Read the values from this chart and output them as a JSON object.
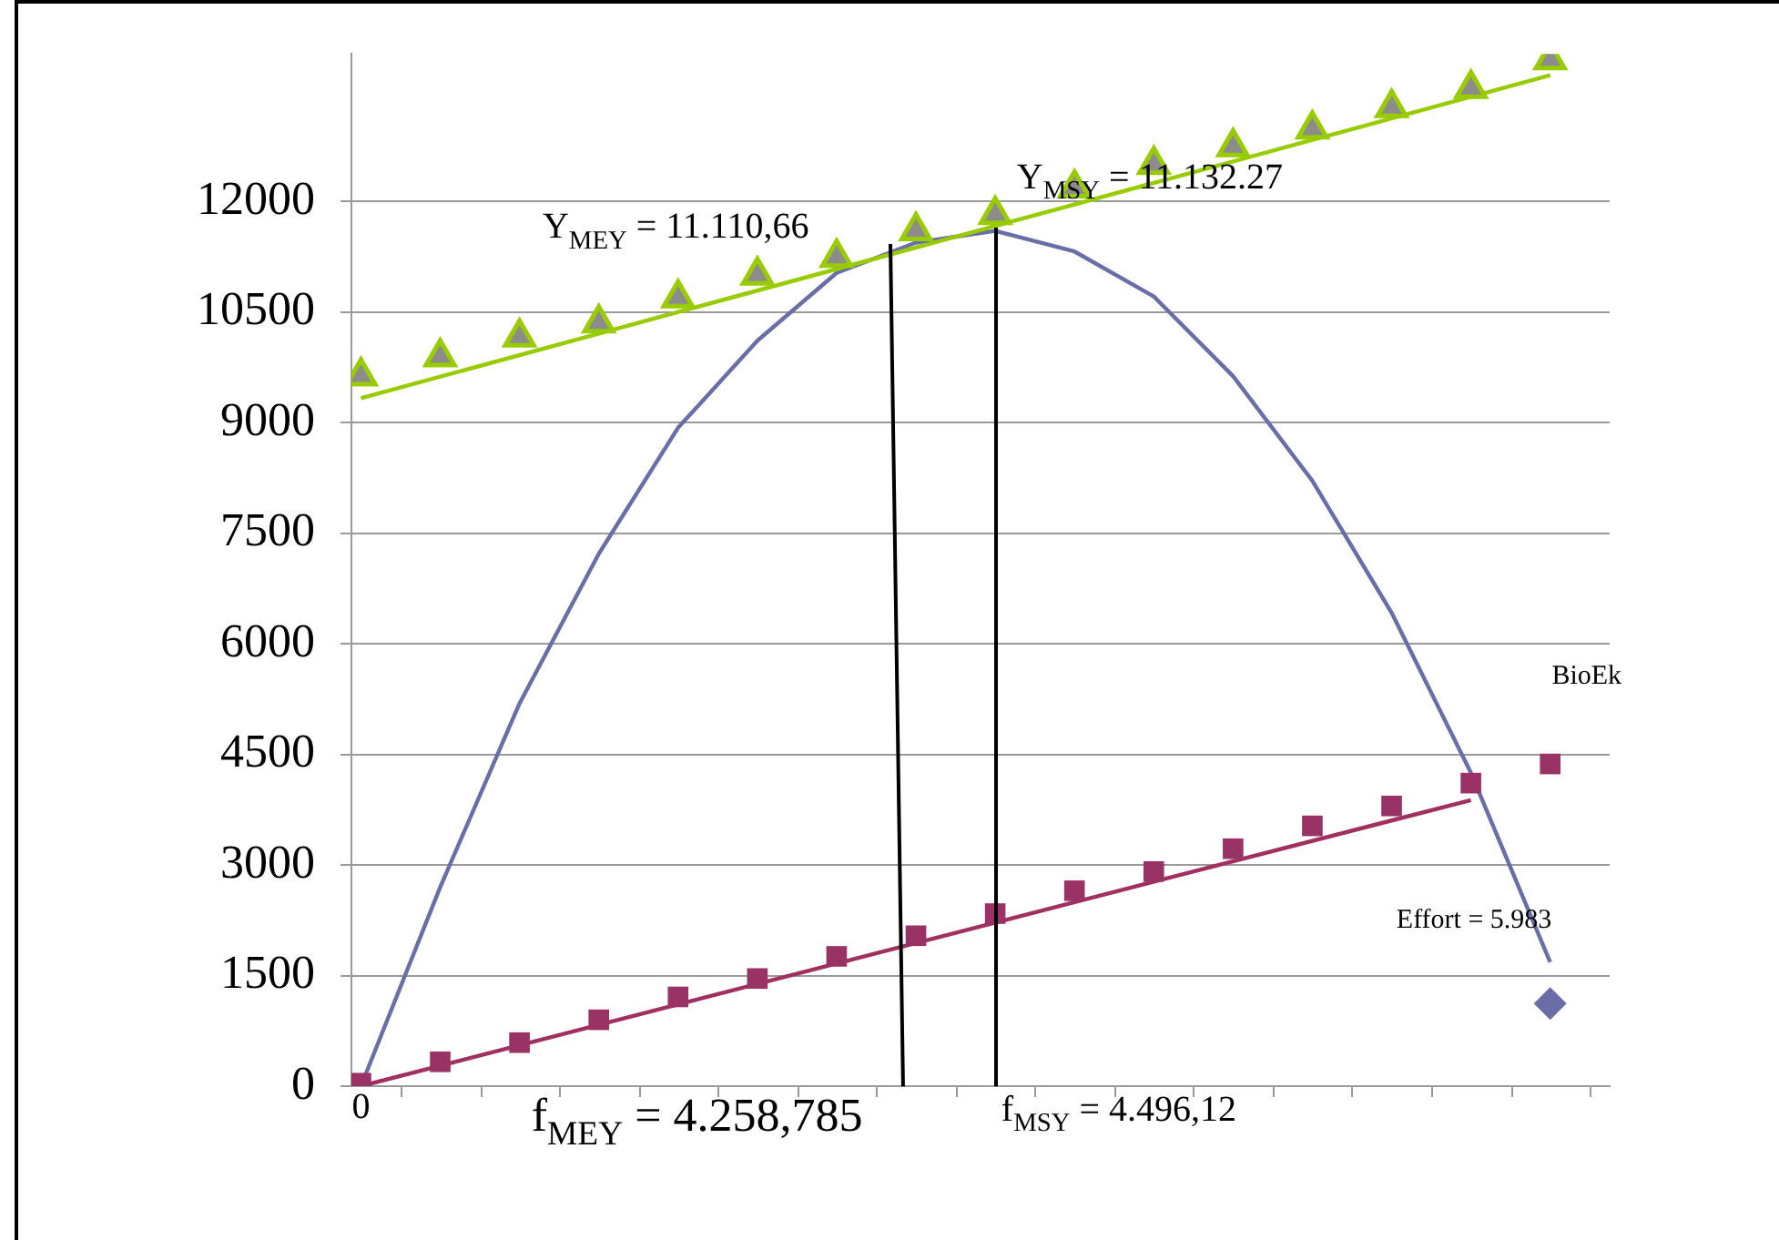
{
  "chart_data": {
    "type": "scatter",
    "categories": [
      "0",
      null,
      null,
      null,
      null,
      null,
      null,
      null,
      null,
      null,
      null,
      null,
      null,
      null,
      null,
      null
    ],
    "ylim": [
      0,
      14000
    ],
    "yticks": [
      0,
      1500,
      3000,
      4500,
      6000,
      7500,
      9000,
      10500,
      12000
    ],
    "grid": "y",
    "series": [
      {
        "marker": "triangle",
        "color": "#99cc00",
        "values": [
          9630,
          9890,
          10160,
          10350,
          10690,
          11000,
          11240,
          11600,
          11820,
          12180,
          12500,
          12740,
          12980,
          13270,
          13530,
          13920
        ]
      },
      {
        "type": "line",
        "marker": "none",
        "color": "#99cc00",
        "values": [
          9330,
          null,
          null,
          null,
          null,
          null,
          null,
          null,
          null,
          null,
          null,
          null,
          null,
          null,
          null,
          13710
        ]
      },
      {
        "type": "line",
        "marker": "none",
        "color": "#6a6ea6",
        "values": [
          0,
          2700,
          5190,
          7220,
          8930,
          10110,
          11030,
          11440,
          11600,
          11320,
          10710,
          9630,
          8210,
          6420,
          4250,
          1680
        ]
      },
      {
        "marker": "square",
        "color": "#993366",
        "values": [
          40,
          330,
          590,
          900,
          1210,
          1460,
          1760,
          2040,
          2340,
          2650,
          2910,
          3220,
          3530,
          3800,
          4110,
          4370
        ]
      },
      {
        "type": "line",
        "marker": "none",
        "color": "#a0305f",
        "values": [
          0,
          null,
          null,
          null,
          null,
          null,
          null,
          null,
          null,
          null,
          null,
          null,
          null,
          null,
          3880,
          null
        ]
      },
      {
        "marker": "diamond",
        "color": "#6a6ea6",
        "values": [
          null,
          null,
          null,
          null,
          null,
          null,
          null,
          null,
          null,
          null,
          null,
          null,
          null,
          null,
          null,
          1120
        ]
      }
    ],
    "annotations": [
      "Y$_{MEY}$ = 11.110,66",
      "Y$_{MSY}$ = 11.132.27",
      "f$_{MEY}$ = 4.258,785",
      "f$_{MSY}$ = 4.496,12",
      "BioEk",
      "Effort = 5.983"
    ]
  }
}
